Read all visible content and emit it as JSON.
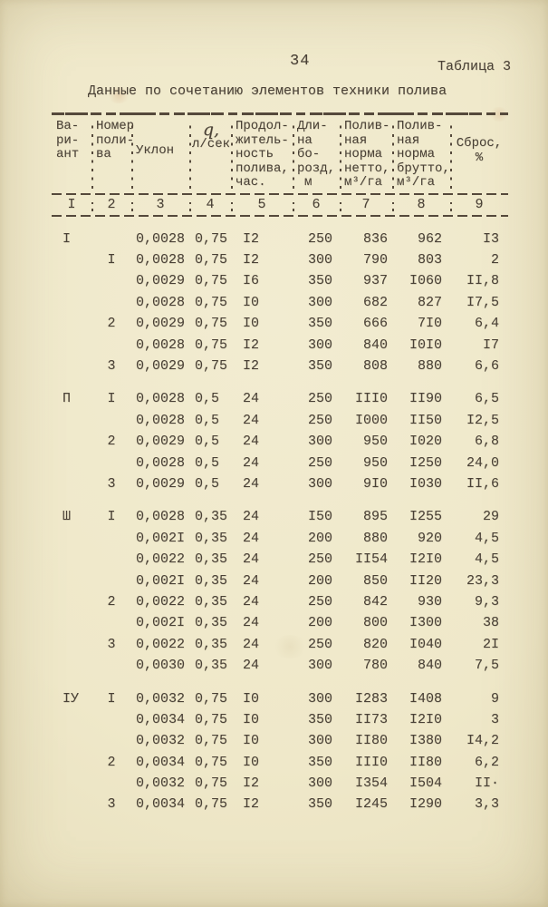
{
  "page": {
    "number": "34",
    "table_label": "Таблица 3",
    "title": "Данные по сочетанию элементов техники полива"
  },
  "colors": {
    "paper": "#efe8c9",
    "ink": "#4a4136"
  },
  "table": {
    "columns": [
      {
        "lines": [
          "Ва-",
          "ри-",
          "ант"
        ]
      },
      {
        "lines": [
          "Номер",
          "поли-",
          "ва"
        ]
      },
      {
        "lines": [
          "Уклон"
        ]
      },
      {
        "lines": [
          "q,",
          "л/сек"
        ]
      },
      {
        "lines": [
          "Продол-",
          "житель-",
          "ность",
          "полива,",
          "час."
        ]
      },
      {
        "lines": [
          "Дли-",
          "на",
          "бо-",
          "розд,",
          "м"
        ]
      },
      {
        "lines": [
          "Полив-",
          "ная",
          "норма",
          "нетто,",
          "м³/га"
        ]
      },
      {
        "lines": [
          "Полив-",
          "ная",
          "норма",
          "брутто,",
          "м³/га"
        ]
      },
      {
        "lines": [
          "Сброс,",
          "%"
        ]
      }
    ],
    "column_numbers": [
      "I",
      "2",
      "3",
      "4",
      "5",
      "6",
      "7",
      "8",
      "9"
    ],
    "groups": [
      {
        "variant": "I",
        "rows": [
          [
            "",
            "0,0028",
            "0,75",
            "I2",
            "250",
            "836",
            "962",
            "I3"
          ],
          [
            "I",
            "0,0028",
            "0,75",
            "I2",
            "300",
            "790",
            "803",
            "2"
          ],
          [
            "",
            "0,0029",
            "0,75",
            "I6",
            "350",
            "937",
            "I060",
            "II,8"
          ],
          [
            "",
            "0,0028",
            "0,75",
            "I0",
            "300",
            "682",
            "827",
            "I7,5"
          ],
          [
            "2",
            "0,0029",
            "0,75",
            "I0",
            "350",
            "666",
            "7I0",
            "6,4"
          ],
          [
            "",
            "0,0028",
            "0,75",
            "I2",
            "300",
            "840",
            "I0I0",
            "I7"
          ],
          [
            "3",
            "0,0029",
            "0,75",
            "I2",
            "350",
            "808",
            "880",
            "6,6"
          ]
        ]
      },
      {
        "variant": "П",
        "rows": [
          [
            "I",
            "0,0028",
            "0,5",
            "24",
            "250",
            "III0",
            "II90",
            "6,5"
          ],
          [
            "",
            "0,0028",
            "0,5",
            "24",
            "250",
            "I000",
            "II50",
            "I2,5"
          ],
          [
            "2",
            "0,0029",
            "0,5",
            "24",
            "300",
            "950",
            "I020",
            "6,8"
          ],
          [
            "",
            "0,0028",
            "0,5",
            "24",
            "250",
            "950",
            "I250",
            "24,0"
          ],
          [
            "3",
            "0,0029",
            "0,5",
            "24",
            "300",
            "9I0",
            "I030",
            "II,6"
          ]
        ]
      },
      {
        "variant": "Ш",
        "rows": [
          [
            "I",
            "0,0028",
            "0,35",
            "24",
            "I50",
            "895",
            "I255",
            "29"
          ],
          [
            "",
            "0,002I",
            "0,35",
            "24",
            "200",
            "880",
            "920",
            "4,5"
          ],
          [
            "",
            "0,0022",
            "0,35",
            "24",
            "250",
            "II54",
            "I2I0",
            "4,5"
          ],
          [
            "",
            "0,002I",
            "0,35",
            "24",
            "200",
            "850",
            "II20",
            "23,3"
          ],
          [
            "2",
            "0,0022",
            "0,35",
            "24",
            "250",
            "842",
            "930",
            "9,3"
          ],
          [
            "",
            "0,002I",
            "0,35",
            "24",
            "200",
            "800",
            "I300",
            "38"
          ],
          [
            "3",
            "0,0022",
            "0,35",
            "24",
            "250",
            "820",
            "I040",
            "2I"
          ],
          [
            "",
            "0,0030",
            "0,35",
            "24",
            "300",
            "780",
            "840",
            "7,5"
          ]
        ]
      },
      {
        "variant": "IУ",
        "rows": [
          [
            "I",
            "0,0032",
            "0,75",
            "I0",
            "300",
            "I283",
            "I408",
            "9"
          ],
          [
            "",
            "0,0034",
            "0,75",
            "I0",
            "350",
            "II73",
            "I2I0",
            "3"
          ],
          [
            "",
            "0,0032",
            "0,75",
            "I0",
            "300",
            "II80",
            "I380",
            "I4,2"
          ],
          [
            "2",
            "0,0034",
            "0,75",
            "I0",
            "350",
            "III0",
            "II80",
            "6,2"
          ],
          [
            "",
            "0,0032",
            "0,75",
            "I2",
            "300",
            "I354",
            "I504",
            "II·"
          ],
          [
            "3",
            "0,0034",
            "0,75",
            "I2",
            "350",
            "I245",
            "I290",
            "3,3"
          ]
        ]
      }
    ]
  }
}
